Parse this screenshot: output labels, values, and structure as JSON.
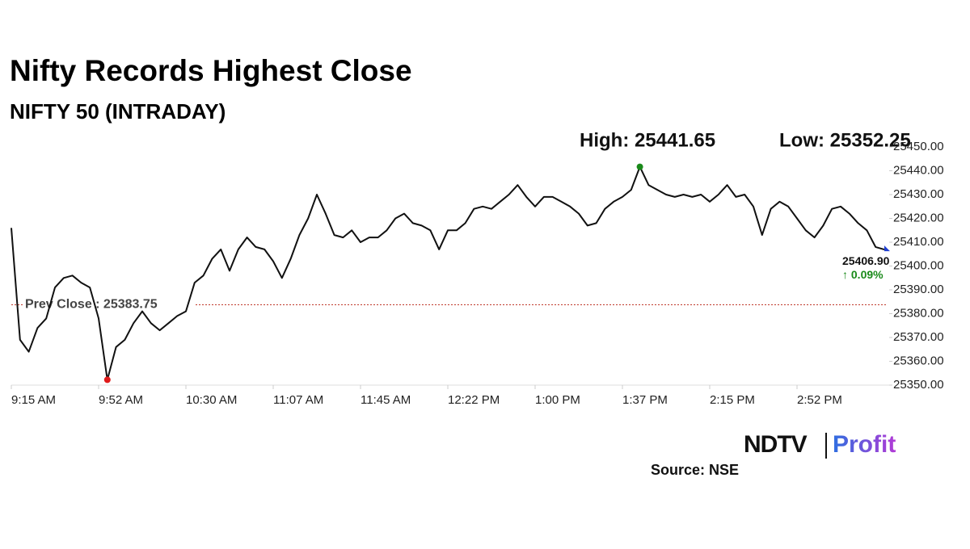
{
  "chart_data": {
    "type": "line",
    "title": "Nifty Records Highest Close",
    "subtitle": "NIFTY 50 (INTRADAY)",
    "high_label": "High: 25441.65",
    "low_label": "Low: 25352.25",
    "prev_close": {
      "value": 25383.75,
      "label": "Prev Close : 25383.75"
    },
    "last_label": "25406.90",
    "change_label": "↑ 0.09%",
    "color": "#111111",
    "high_color": "#1a8a1a",
    "low_color": "#e01b1b",
    "last_color": "#1f3fd1",
    "prev_close_color": "#c0392b",
    "change_color": "#1a8a1a",
    "categories": [
      "9:15 AM",
      null,
      null,
      null,
      null,
      null,
      null,
      null,
      null,
      null,
      "9:52 AM",
      null,
      null,
      null,
      null,
      null,
      null,
      null,
      null,
      null,
      "10:30 AM",
      null,
      null,
      null,
      null,
      null,
      null,
      null,
      null,
      null,
      "11:07 AM",
      null,
      null,
      null,
      null,
      null,
      null,
      null,
      null,
      null,
      "11:45 AM",
      null,
      null,
      null,
      null,
      null,
      null,
      null,
      null,
      null,
      "12:22 PM",
      null,
      null,
      null,
      null,
      null,
      null,
      null,
      null,
      null,
      "1:00 PM",
      null,
      null,
      null,
      null,
      null,
      null,
      null,
      null,
      null,
      "1:37 PM",
      null,
      null,
      null,
      null,
      null,
      null,
      null,
      null,
      null,
      "2:15 PM",
      null,
      null,
      null,
      null,
      null,
      null,
      null,
      null,
      null,
      "2:52 PM",
      null,
      null,
      null,
      null,
      null,
      null,
      null,
      null,
      null,
      null
    ],
    "values": [
      25416,
      25369,
      25364,
      25374,
      25378,
      25391,
      25395,
      25396,
      25393,
      25391,
      25378,
      25352.25,
      25366,
      25369,
      25376,
      25381,
      25376,
      25373,
      25376,
      25379,
      25381,
      25393,
      25396,
      25403,
      25407,
      25398,
      25407,
      25412,
      25408,
      25407,
      25402,
      25395,
      25403,
      25413,
      25420,
      25430,
      25422,
      25413,
      25412,
      25415,
      25410,
      25412,
      25412,
      25415,
      25420,
      25422,
      25418,
      25417,
      25415,
      25407,
      25415,
      25415,
      25418,
      25424,
      25425,
      25424,
      25427,
      25430,
      25434,
      25429,
      25425,
      25429,
      25429,
      25427,
      25425,
      25422,
      25417,
      25418,
      25424,
      25427,
      25429,
      25432,
      25441.65,
      25434,
      25432,
      25430,
      25429,
      25430,
      25429,
      25430,
      25427,
      25430,
      25434,
      25429,
      25430,
      25425,
      25413,
      25424,
      25427,
      25425,
      25420,
      25415,
      25412,
      25417,
      25424,
      25425,
      25422,
      25418,
      25415,
      25408,
      25406.9
    ],
    "ylim": [
      25350,
      25450
    ],
    "yticks": [
      {
        "value": 25350,
        "label": "25350.00"
      },
      {
        "value": 25360,
        "label": "25360.00"
      },
      {
        "value": 25370,
        "label": "25370.00"
      },
      {
        "value": 25380,
        "label": "25380.00"
      },
      {
        "value": 25390,
        "label": "25390.00"
      },
      {
        "value": 25400,
        "label": "25400.00"
      },
      {
        "value": 25410,
        "label": "25410.00"
      },
      {
        "value": 25420,
        "label": "25420.00"
      },
      {
        "value": 25430,
        "label": "25430.00"
      },
      {
        "value": 25440,
        "label": "25440.00"
      },
      {
        "value": 25450,
        "label": "25450.00"
      }
    ],
    "grid": false,
    "source": "Source: NSE",
    "logo": {
      "brand": "NDTV",
      "name": "Profit"
    }
  }
}
